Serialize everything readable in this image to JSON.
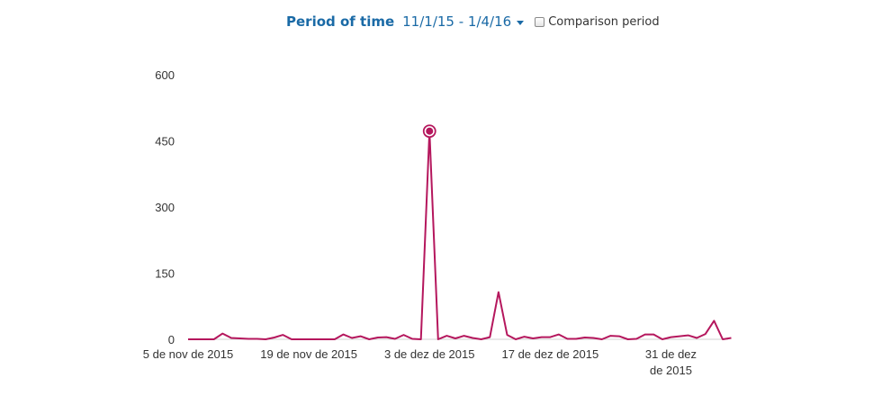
{
  "header": {
    "period_label": "Period of time",
    "period_range": "11/1/15 - 1/4/16",
    "comparison_label": "Comparison period",
    "comparison_checked": false
  },
  "chart_data": {
    "type": "line",
    "title": "",
    "xlabel": "",
    "ylabel": "",
    "ylim": [
      0,
      600
    ],
    "yticks": [
      "0",
      "150",
      "300",
      "450",
      "600"
    ],
    "xticks": [
      {
        "day": 0,
        "lines": [
          "5 de nov de 2015"
        ]
      },
      {
        "day": 14,
        "lines": [
          "19 de nov de 2015"
        ]
      },
      {
        "day": 28,
        "lines": [
          "3 de dez de 2015"
        ]
      },
      {
        "day": 42,
        "lines": [
          "17 de dez de 2015"
        ]
      },
      {
        "day": 56,
        "lines": [
          "31 de dez",
          "de 2015"
        ]
      }
    ],
    "grid": false,
    "line_color": "#b5175d",
    "highlight_index": 28,
    "series": [
      {
        "values": [
          0,
          0,
          0,
          0,
          13,
          3,
          2,
          1,
          1,
          0,
          4,
          10,
          0,
          0,
          0,
          0,
          0,
          0,
          11,
          3,
          7,
          0,
          4,
          5,
          1,
          10,
          1,
          0,
          472,
          0,
          8,
          2,
          8,
          3,
          0,
          5,
          107,
          10,
          0,
          6,
          2,
          5,
          5,
          11,
          1,
          1,
          4,
          3,
          0,
          8,
          7,
          0,
          1,
          11,
          11,
          0,
          5,
          7,
          9,
          3,
          12,
          42,
          0,
          3
        ]
      }
    ]
  }
}
